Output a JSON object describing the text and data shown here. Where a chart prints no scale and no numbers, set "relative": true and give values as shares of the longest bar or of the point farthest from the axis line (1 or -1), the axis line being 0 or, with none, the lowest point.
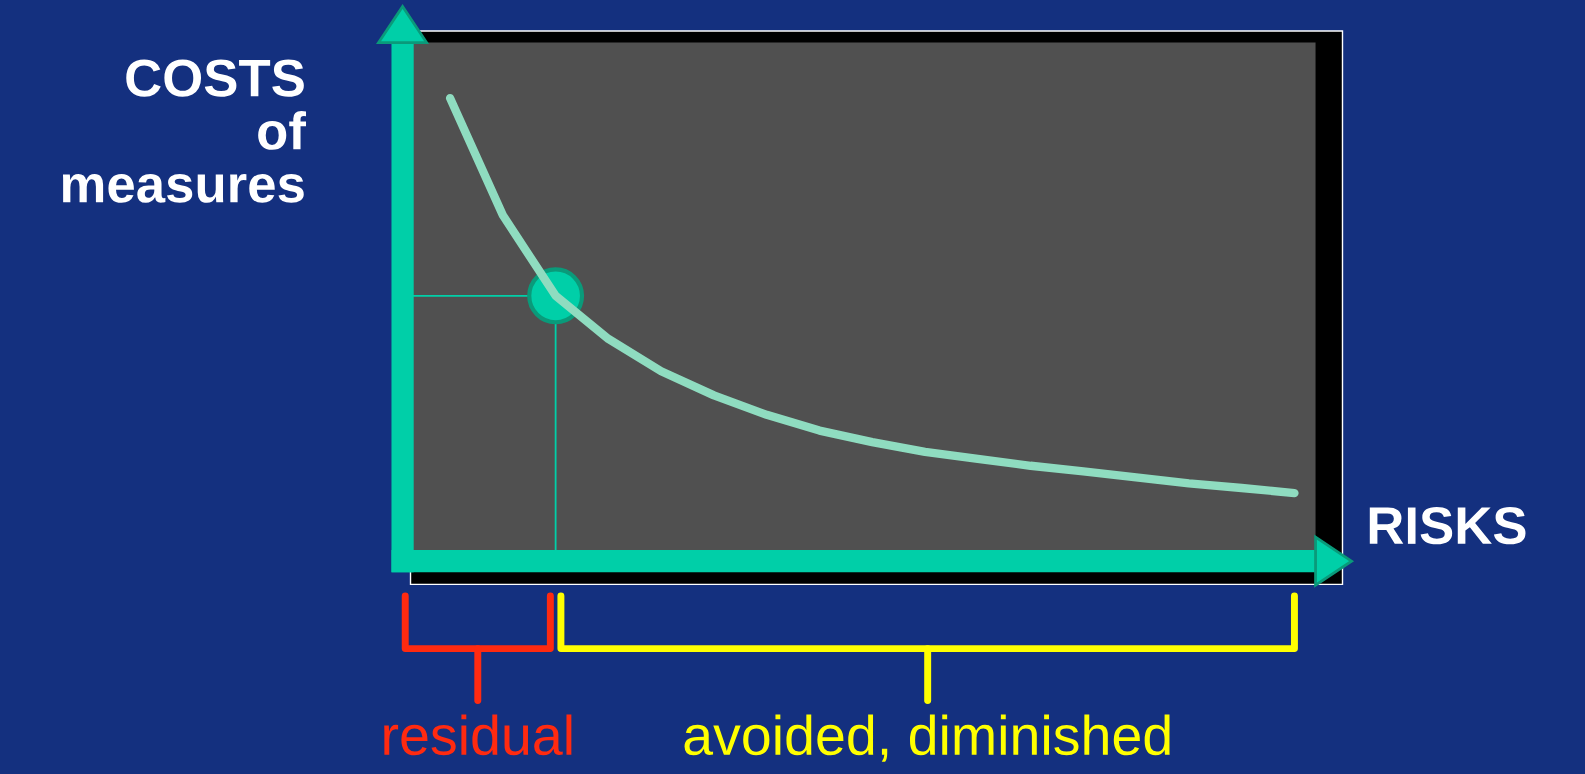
{
  "chart_data": {
    "type": "line",
    "relative": true,
    "xlabel": "RISKS",
    "ylabel": "COSTS\nof\nmeasures",
    "categories": [
      null,
      null,
      null,
      null,
      null,
      null,
      null,
      null,
      null,
      null,
      null,
      null,
      null,
      null,
      null,
      null,
      null
    ],
    "series": [
      {
        "color": "#8fdcc0",
        "values": [
          1,
          0.747,
          0.573,
          0.48,
          0.41,
          0.358,
          0.316,
          0.282,
          0.257,
          0.236,
          0.221,
          0.206,
          0.194,
          0.181,
          0.168,
          0.158,
          0.147
        ]
      }
    ],
    "ref_lines": [
      {
        "axis": "y",
        "value": 0.573,
        "color": "#00cfa8"
      }
    ],
    "annotations": [
      "residual",
      "avoided, diminished"
    ],
    "marker": "none"
  }
}
